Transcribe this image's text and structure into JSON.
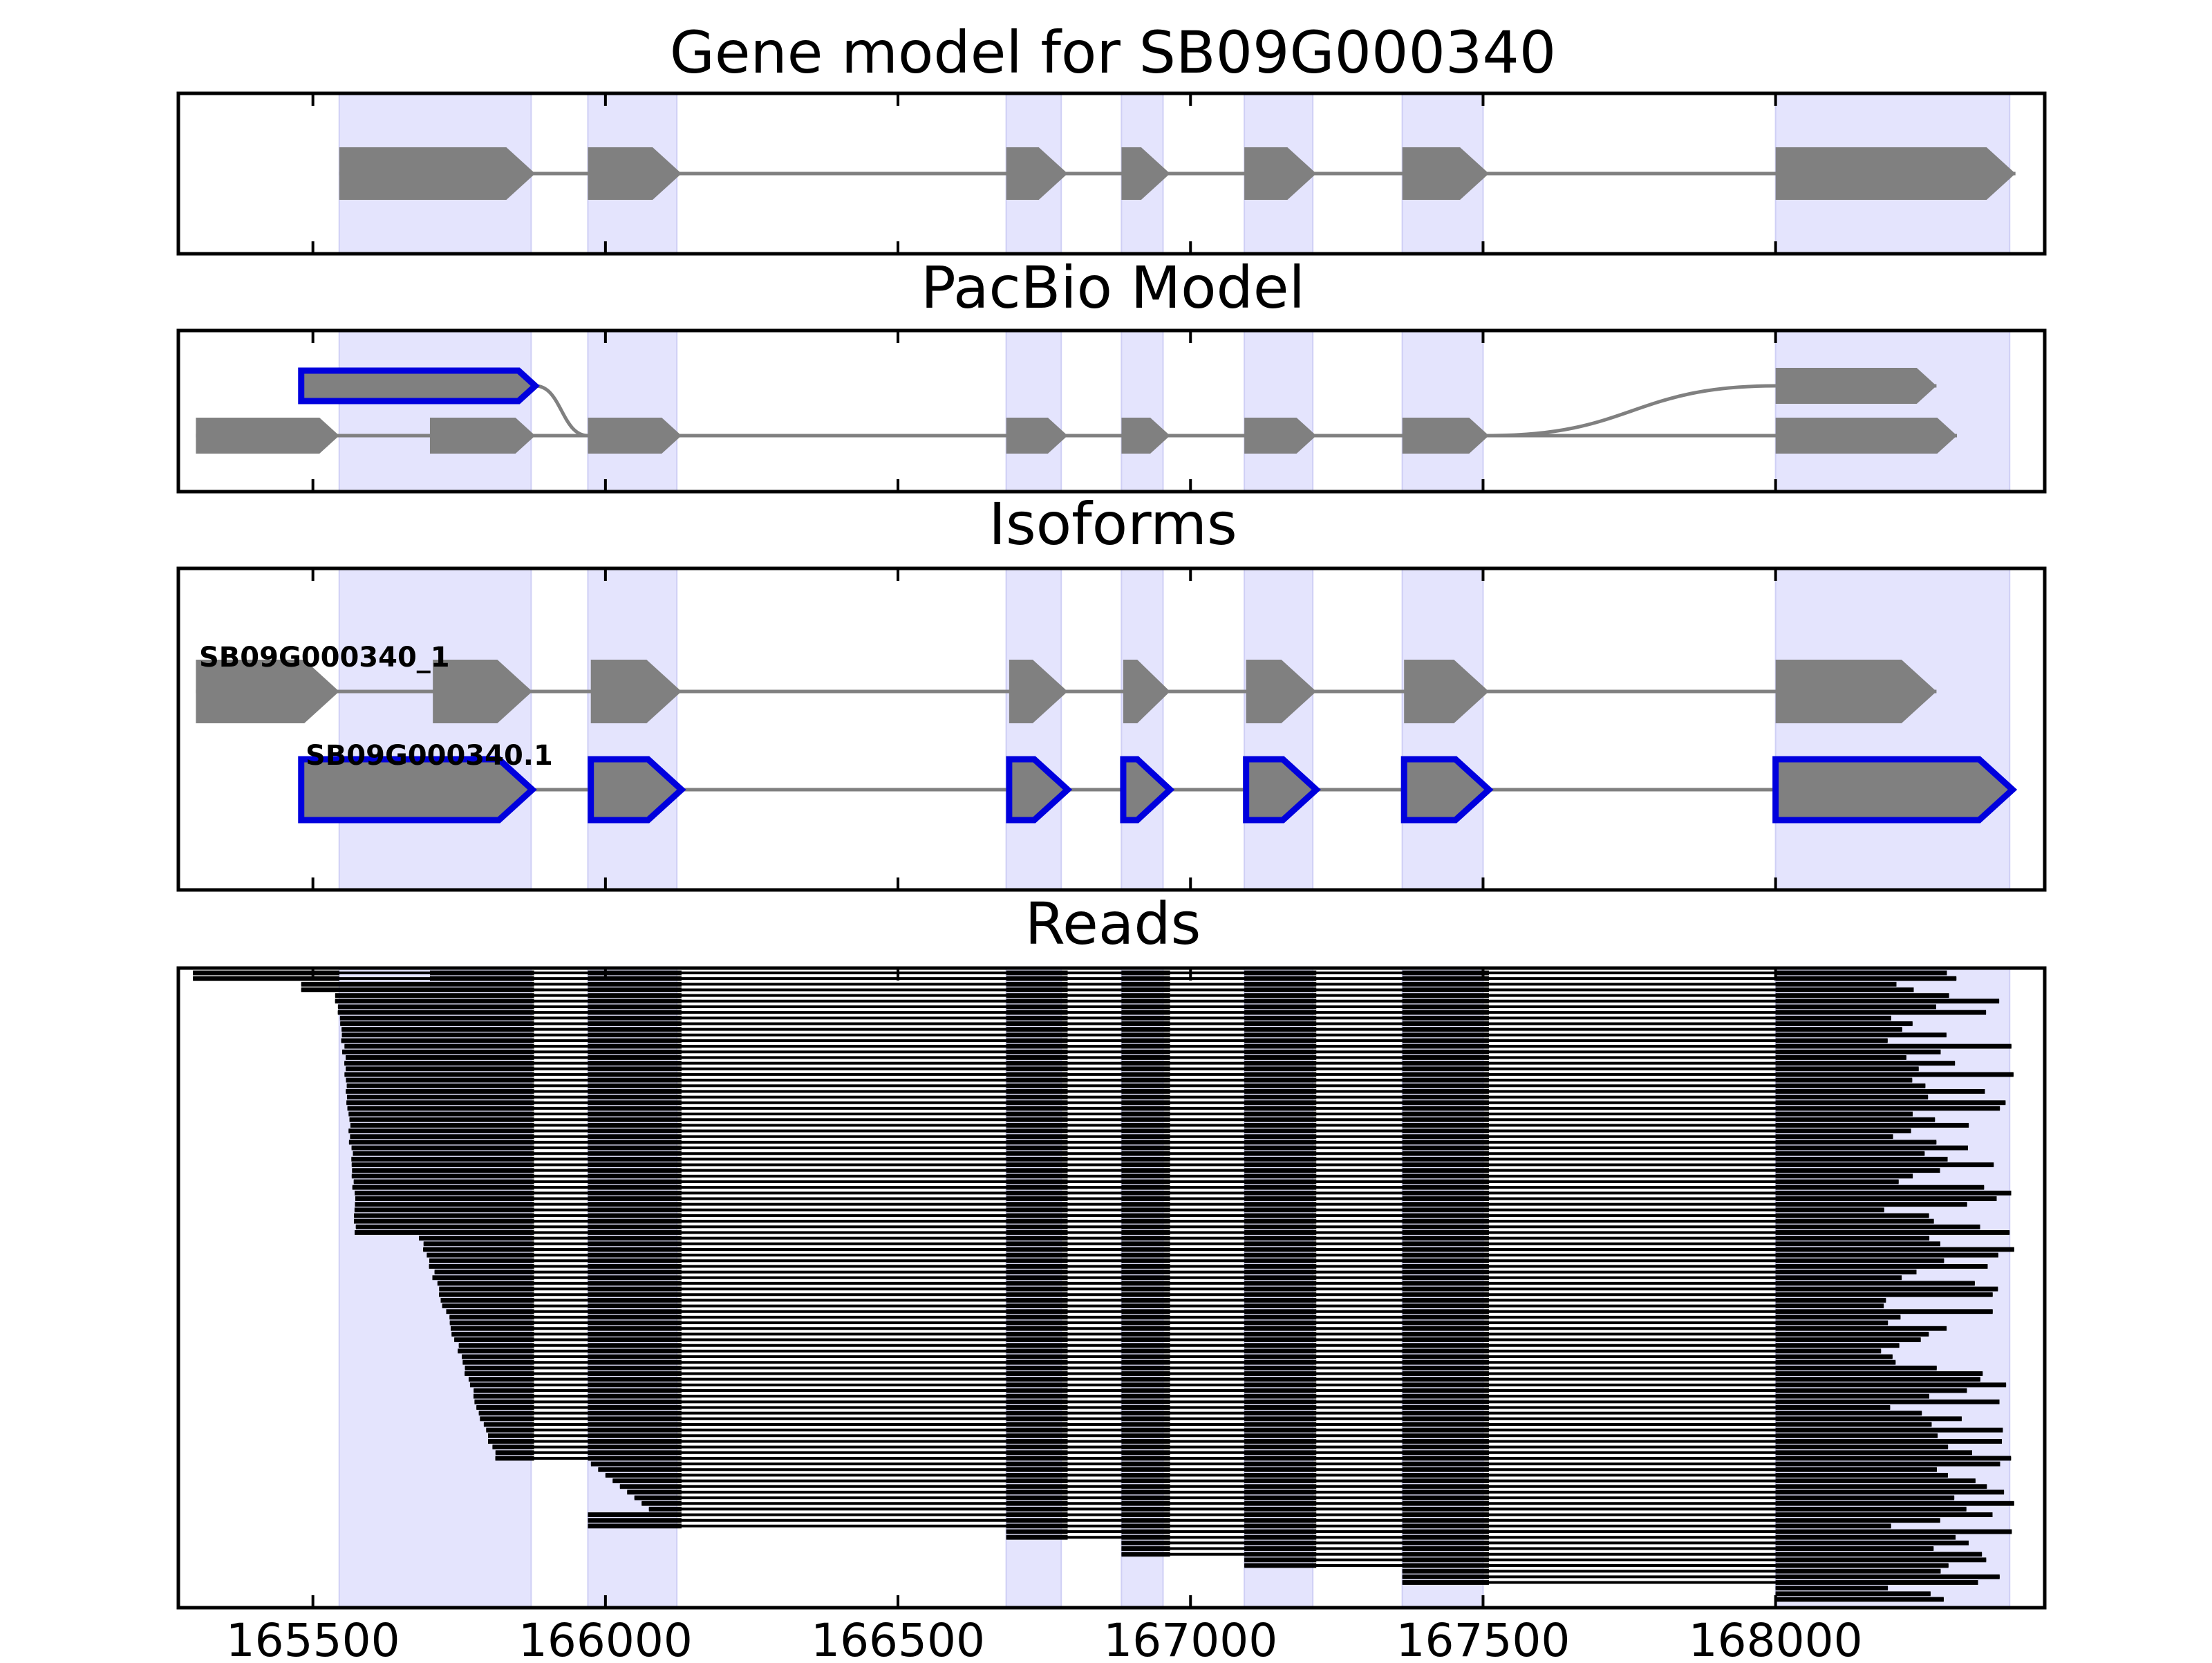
{
  "chart_data": {
    "type": "gene-model",
    "x_range": [
      165270,
      168460
    ],
    "x_ticks": [
      165500,
      166000,
      166500,
      167000,
      167500,
      168000
    ],
    "tick_labels": [
      "165500",
      "166000",
      "166500",
      "167000",
      "167500",
      "168000"
    ],
    "shaded_exons": [
      [
        165545,
        165873
      ],
      [
        165970,
        166122
      ],
      [
        166685,
        166779
      ],
      [
        166882,
        166953
      ],
      [
        167092,
        167209
      ],
      [
        167362,
        167500
      ],
      [
        168000,
        168400
      ]
    ],
    "colors": {
      "exon": "#808080",
      "highlight": "#0000dd",
      "shade": "#e4e4fd",
      "read": "#000000",
      "intron": "#808080"
    },
    "panels": [
      {
        "title": "Gene model for SB09G000340",
        "tracks": [
          {
            "label": "",
            "exons": [
              [
                165545,
                165880
              ],
              [
                165970,
                166130
              ],
              [
                166685,
                166790
              ],
              [
                166882,
                166965
              ],
              [
                167092,
                167215
              ],
              [
                167362,
                167510
              ],
              [
                168000,
                168410
              ]
            ]
          }
        ]
      },
      {
        "title": "PacBio Model",
        "tracks": [
          {
            "label": "",
            "highlight": true,
            "exons": [
              [
                165480,
                165880
              ]
            ]
          },
          {
            "label": "",
            "exons": [
              [
                168000,
                168275
              ]
            ]
          },
          {
            "label": "",
            "exons": [
              [
                165300,
                165545
              ],
              [
                165700,
                165880
              ],
              [
                165970,
                166130
              ],
              [
                166685,
                166790
              ],
              [
                166882,
                166965
              ],
              [
                167092,
                167215
              ],
              [
                167362,
                167510
              ],
              [
                168000,
                168310
              ]
            ]
          }
        ],
        "curves": [
          [
            165880,
            0,
            165970,
            2
          ],
          [
            167510,
            2,
            168000,
            1
          ]
        ]
      },
      {
        "title": "Isoforms",
        "tracks": [
          {
            "label": "SB09G000340_1",
            "exons": [
              [
                165300,
                165545
              ],
              [
                165705,
                165875
              ],
              [
                165975,
                166130
              ],
              [
                166690,
                166790
              ],
              [
                166885,
                166965
              ],
              [
                167095,
                167215
              ],
              [
                167365,
                167510
              ],
              [
                168000,
                168275
              ]
            ]
          },
          {
            "label": "SB09G000340.1",
            "highlight": true,
            "exons": [
              [
                165480,
                165875
              ],
              [
                165975,
                166130
              ],
              [
                166690,
                166790
              ],
              [
                166885,
                166965
              ],
              [
                167095,
                167215
              ],
              [
                167365,
                167510
              ],
              [
                168000,
                168405
              ]
            ]
          }
        ]
      },
      {
        "title": "Reads",
        "read_count": 112,
        "internal_exons": [
          [
            165970,
            166130
          ],
          [
            166685,
            166790
          ],
          [
            166882,
            166965
          ],
          [
            167092,
            167215
          ],
          [
            167362,
            167510
          ]
        ]
      }
    ]
  }
}
